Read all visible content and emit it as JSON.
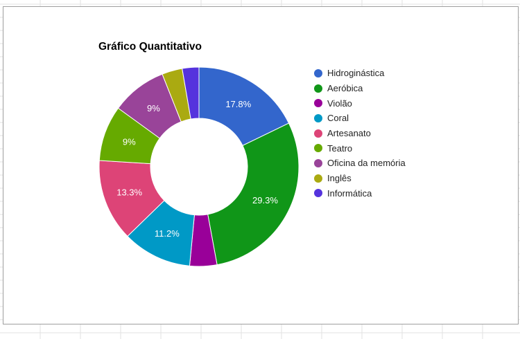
{
  "chart_data": {
    "type": "pie",
    "title": "Gráfico Quantitativo",
    "legend_position": "right",
    "categories": [
      "Hidroginástica",
      "Aeróbica",
      "Violão",
      "Coral",
      "Artesanato",
      "Teatro",
      "Oficina da memória",
      "Inglês",
      "Informática"
    ],
    "values": [
      17.8,
      29.3,
      4.4,
      11.2,
      13.3,
      9,
      9,
      3.3,
      2.7
    ],
    "data_labels": [
      "17.8%",
      "29.3%",
      "",
      "11.2%",
      "13.3%",
      "9%",
      "9%",
      "",
      ""
    ],
    "colors": [
      "#3366cc",
      "#109618",
      "#990099",
      "#0099c6",
      "#dd4477",
      "#66aa00",
      "#994499",
      "#aaaa11",
      "#5533dd"
    ]
  }
}
